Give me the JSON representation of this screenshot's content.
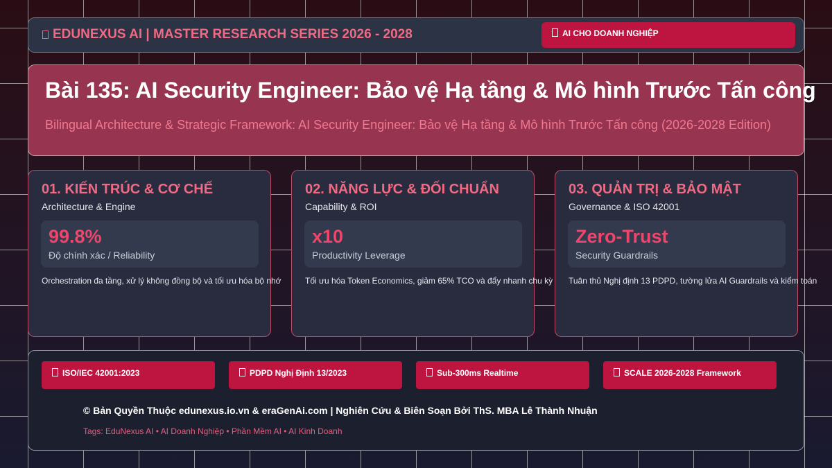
{
  "header": {
    "brand": "EDUNEXUS AI | MASTER RESEARCH SERIES 2026 - 2028",
    "badge": "AI CHO DOANH NGHIỆP"
  },
  "hero": {
    "title": "Bài 135: AI Security Engineer: Bảo vệ Hạ tầng & Mô hình Trước Tấn công",
    "subtitle": "Bilingual Architecture & Strategic Framework: AI Security Engineer: Bảo vệ Hạ tầng & Mô hình Trước Tấn công (2026-2028 Edition)"
  },
  "cards": [
    {
      "title": "01. KIẾN TRÚC & CƠ CHẾ",
      "subtitle": "Architecture & Engine",
      "metric": "99.8%",
      "metric_label": "Độ chính xác / Reliability",
      "description": "Orchestration đa tầng, xử lý không đồng bộ và tối ưu hóa bộ nhớ"
    },
    {
      "title": "02. NĂNG LỰC & ĐỐI CHUẨN",
      "subtitle": "Capability & ROI",
      "metric": "x10",
      "metric_label": "Productivity Leverage",
      "description": "Tối ưu hóa Token Economics, giảm 65% TCO và đẩy nhanh chu kỳ"
    },
    {
      "title": "03. QUẢN TRỊ & BẢO MẬT",
      "subtitle": "Governance & ISO 42001",
      "metric": "Zero-Trust",
      "metric_label": "Security Guardrails",
      "description": "Tuân thủ Nghị định 13 PDPD, tường lửa AI Guardrails và kiểm toán"
    }
  ],
  "footer": {
    "badges": [
      "ISO/IEC 42001:2023",
      "PDPD Nghị Định 13/2023",
      "Sub-300ms Realtime",
      "SCALE 2026-2028 Framework"
    ],
    "copyright": "© Bản Quyền Thuộc edunexus.io.vn & eraGenAi.com | Nghiên Cứu & Biên Soạn Bởi ThS. MBA Lê Thành Nhuận",
    "tags": "Tags: EduNexus AI • AI Doanh Nghiệp • Phần Mềm AI • AI Kinh Doanh"
  }
}
